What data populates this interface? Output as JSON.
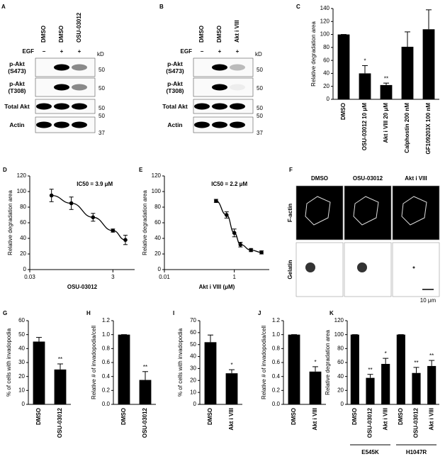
{
  "chart_data": [
    {
      "panel": "C",
      "type": "bar",
      "y_label": "Relative degradation area",
      "categories": [
        "DMSO",
        "OSU-03012 10 μM",
        "Akt i VIII 20 μM",
        "Calphostin 200 nM",
        "GF109203X 100 nM"
      ],
      "values": [
        100,
        40,
        22,
        81,
        108
      ],
      "errors": [
        0,
        12,
        3,
        23,
        30
      ],
      "significance": [
        null,
        "*",
        "**",
        null,
        null
      ],
      "color": "#000000",
      "ylim": [
        0,
        140
      ],
      "yticks": [
        0,
        20,
        40,
        60,
        80,
        100,
        120,
        140
      ]
    },
    {
      "panel": "D",
      "type": "line",
      "x_label": "OSU-03012",
      "annotation": "IC50 = 3.9 μM",
      "x": [
        0.1,
        0.3,
        1,
        3,
        6
      ],
      "values": [
        95,
        85,
        67,
        50,
        38
      ],
      "errors": [
        8,
        8,
        5,
        2,
        6
      ],
      "color": "#000000",
      "x_scale": "log",
      "xlim": [
        0.03,
        10
      ],
      "xticks": [
        0.03,
        3
      ],
      "ylim": [
        0,
        120
      ],
      "yticks": [
        0,
        20,
        40,
        60,
        80,
        100,
        120
      ],
      "y_label": "Relative degradation area"
    },
    {
      "panel": "E",
      "type": "line",
      "x_label": "Akt i VIII (μM)",
      "annotation": "IC50 = 2.2 μM",
      "x": [
        0.3,
        0.6,
        1,
        1.5,
        3,
        6
      ],
      "values": [
        88,
        70,
        47,
        32,
        25,
        22
      ],
      "errors": [
        2,
        4,
        5,
        3,
        2,
        2
      ],
      "color": "#000000",
      "x_scale": "log",
      "xlim": [
        0.01,
        10
      ],
      "xticks": [
        0.01,
        1
      ],
      "ylim": [
        0,
        120
      ],
      "yticks": [
        0,
        20,
        40,
        60,
        80,
        100,
        120
      ],
      "y_label": "Relative degradation area"
    },
    {
      "panel": "G",
      "type": "bar",
      "y_label": "% of cells with invadopodia",
      "categories": [
        "DMSO",
        "OSU-03012"
      ],
      "values": [
        45,
        25
      ],
      "errors": [
        3,
        4
      ],
      "significance": [
        null,
        "**"
      ],
      "color": "#000000",
      "ylim": [
        0,
        60
      ],
      "yticks": [
        0,
        10,
        20,
        30,
        40,
        50,
        60
      ]
    },
    {
      "panel": "H",
      "type": "bar",
      "y_label": "Relative # of invadopodia/cell",
      "categories": [
        "DMSO",
        "OSU-03012"
      ],
      "values": [
        1,
        0.35
      ],
      "errors": [
        0,
        0.12
      ],
      "significance": [
        null,
        "**"
      ],
      "color": "#000000",
      "ylim": [
        0,
        1.2
      ],
      "yticks": [
        {
          "value": 0,
          "label": "0.0"
        },
        0.2,
        0.4,
        0.6,
        0.8,
        {
          "value": 1,
          "label": "1.0"
        },
        1.2
      ]
    },
    {
      "panel": "I",
      "type": "bar",
      "y_label": "% of cells with invadopodia",
      "categories": [
        "DMSO",
        "Akt i VIII"
      ],
      "values": [
        52,
        26
      ],
      "errors": [
        6,
        3
      ],
      "significance": [
        null,
        "*"
      ],
      "color": "#000000",
      "ylim": [
        0,
        70
      ],
      "yticks": [
        0,
        10,
        20,
        30,
        40,
        50,
        60,
        70
      ]
    },
    {
      "panel": "J",
      "type": "bar",
      "y_label": "Relative # of invadopodia/cell",
      "categories": [
        "DMSO",
        "Akt i VIII"
      ],
      "values": [
        1,
        0.47
      ],
      "errors": [
        0,
        0.07
      ],
      "significance": [
        null,
        "*"
      ],
      "color": "#000000",
      "ylim": [
        0,
        1.2
      ],
      "yticks": [
        {
          "value": 0,
          "label": "0.0"
        },
        0.2,
        0.4,
        0.6,
        0.8,
        {
          "value": 1,
          "label": "1.0"
        },
        1.2
      ]
    },
    {
      "panel": "K",
      "type": "bar",
      "y_label": "Relative degradation area",
      "categories": [
        "DMSO",
        "OSU-03012",
        "Akt i VIII",
        "DMSO",
        "OSU-03012",
        "Akt i VIII"
      ],
      "values": [
        100,
        38,
        58,
        100,
        45,
        55
      ],
      "errors": [
        0,
        5,
        8,
        0,
        8,
        8
      ],
      "significance": [
        null,
        "**",
        "*",
        null,
        "**",
        "**"
      ],
      "groups": [
        "E545K",
        "H1047R"
      ],
      "color": "#000000",
      "ylim": [
        0,
        120
      ],
      "yticks": [
        0,
        20,
        40,
        60,
        80,
        100,
        120
      ]
    }
  ],
  "blots": [
    {
      "panel": "A",
      "lanes": [
        "DMSO",
        "DMSO",
        "OSU-03012"
      ],
      "treatment_label": "EGF",
      "treatments": [
        "−",
        "+",
        "+"
      ],
      "rows": [
        "p-Akt (S473)",
        "p-Akt (T308)",
        "Total Akt",
        "Actin"
      ],
      "kd_unit": "kD",
      "kd_markers": [
        "50",
        "50",
        "50",
        "50",
        "37"
      ]
    },
    {
      "panel": "B",
      "lanes": [
        "DMSO",
        "DMSO",
        "Akt i VIII"
      ],
      "treatment_label": "EGF",
      "treatments": [
        "−",
        "+",
        "+"
      ],
      "rows": [
        "p-Akt (S473)",
        "p-Akt (T308)",
        "Total Akt",
        "Actin"
      ],
      "kd_unit": "kD",
      "kd_markers": [
        "50",
        "50",
        "50",
        "50",
        "37"
      ]
    }
  ],
  "images": {
    "panel": "F",
    "columns": [
      "DMSO",
      "OSU-03012",
      "Akt i VIII"
    ],
    "rows": [
      "F-actin",
      "Gelatin"
    ],
    "scale_bar": "10 μm"
  }
}
